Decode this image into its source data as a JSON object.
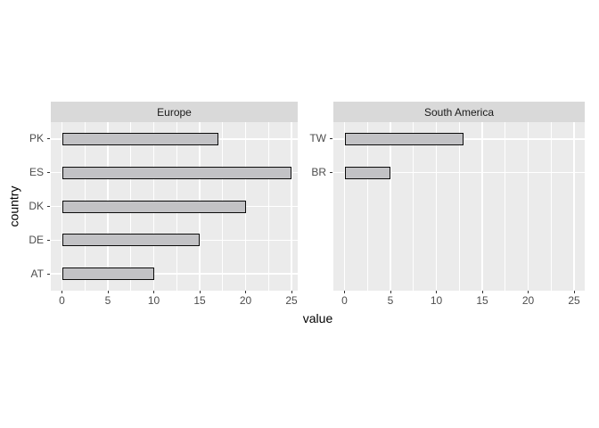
{
  "chart_data": {
    "type": "bar",
    "orientation": "horizontal",
    "title": "",
    "xlabel": "value",
    "ylabel": "country",
    "x_ticks": [
      0,
      5,
      10,
      15,
      20,
      25
    ],
    "x_minor_ticks": [
      2.5,
      7.5,
      12.5,
      17.5,
      22.5
    ],
    "xlim": [
      0,
      26
    ],
    "row_slots": 5,
    "grid": "on",
    "legend": "none",
    "facets": [
      {
        "label": "Europe",
        "categories": [
          "PK",
          "ES",
          "DK",
          "DE",
          "AT"
        ],
        "values": [
          17,
          25,
          20,
          15,
          10
        ]
      },
      {
        "label": "South America",
        "categories": [
          "TW",
          "BR"
        ],
        "values": [
          13,
          5
        ]
      }
    ]
  },
  "colors": {
    "background": "#FFFFFF",
    "panel_bg": "#EBEBEB",
    "strip_bg": "#D9D9D9",
    "strip_text": "#1A1A1A",
    "grid": "#FFFFFF",
    "bar_fill": "#C2C2C5",
    "bar_stroke": "#0B0B0B",
    "tick_label": "#4D4D4D",
    "tick_mark": "#333333",
    "axis_title": "#000000"
  }
}
